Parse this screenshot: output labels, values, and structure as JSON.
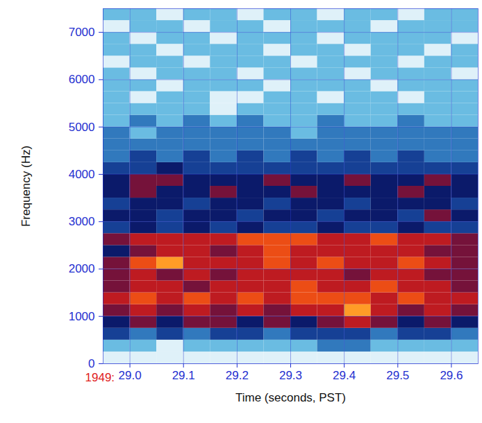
{
  "chart_data": {
    "type": "heatmap",
    "x_label": "Time (seconds, PST)",
    "y_label": "Frequency (Hz)",
    "annotations": [
      {
        "text": "1949:",
        "color": "#e0201c"
      }
    ],
    "xlim": [
      28.95,
      29.65
    ],
    "ylim": [
      0,
      7500
    ],
    "xticks": [
      {
        "value": 29,
        "label": "29.0"
      },
      29.1,
      29.2,
      29.3,
      29.4,
      29.5,
      29.6
    ],
    "yticks": [
      0,
      1000,
      2000,
      3000,
      4000,
      5000,
      6000,
      7000
    ],
    "grid": true,
    "x_edges": [
      28.95,
      29.0,
      29.05,
      29.1,
      29.15,
      29.2,
      29.25,
      29.3,
      29.35,
      29.4,
      29.45,
      29.5,
      29.55,
      29.6,
      29.65
    ],
    "y_edges": [
      0,
      250,
      500,
      750,
      1000,
      1250,
      1500,
      1750,
      2000,
      2250,
      2500,
      2750,
      3000,
      3250,
      3500,
      3750,
      4000,
      4250,
      4500,
      4750,
      5000,
      5250,
      5500,
      5750,
      6000,
      6250,
      6500,
      6750,
      7000,
      7250,
      7500
    ],
    "zlim": [
      0,
      10
    ],
    "cells": [
      [
        1,
        1,
        1,
        1,
        1,
        1,
        1,
        1,
        1,
        1,
        1,
        1,
        1,
        1
      ],
      [
        2,
        2,
        1,
        2,
        2,
        2,
        2,
        2,
        3,
        3,
        2,
        2,
        2,
        2
      ],
      [
        4,
        3,
        4,
        3,
        4,
        4,
        3,
        4,
        4,
        4,
        3,
        4,
        4,
        3
      ],
      [
        5,
        6,
        5,
        6,
        6,
        5,
        6,
        5,
        6,
        7,
        6,
        5,
        6,
        5
      ],
      [
        6,
        7,
        6,
        7,
        6,
        7,
        6,
        7,
        7,
        9,
        7,
        6,
        7,
        6
      ],
      [
        7,
        8,
        7,
        8,
        7,
        8,
        7,
        8,
        8,
        8,
        7,
        8,
        7,
        7
      ],
      [
        6,
        7,
        7,
        6,
        7,
        7,
        7,
        8,
        7,
        7,
        8,
        7,
        7,
        6
      ],
      [
        6,
        7,
        6,
        7,
        6,
        7,
        7,
        7,
        7,
        6,
        7,
        7,
        6,
        6
      ],
      [
        6,
        8,
        9,
        7,
        7,
        7,
        8,
        7,
        8,
        7,
        7,
        8,
        7,
        6
      ],
      [
        5,
        6,
        7,
        7,
        6,
        7,
        8,
        7,
        7,
        7,
        7,
        7,
        6,
        6
      ],
      [
        6,
        7,
        7,
        7,
        7,
        8,
        8,
        8,
        7,
        7,
        8,
        7,
        7,
        6
      ],
      [
        4,
        5,
        4,
        5,
        4,
        5,
        4,
        4,
        5,
        4,
        4,
        5,
        4,
        4
      ],
      [
        5,
        5,
        4,
        5,
        5,
        4,
        5,
        5,
        4,
        5,
        5,
        4,
        6,
        5
      ],
      [
        4,
        5,
        5,
        4,
        5,
        5,
        4,
        5,
        5,
        4,
        5,
        5,
        5,
        4
      ],
      [
        5,
        6,
        5,
        5,
        6,
        5,
        5,
        6,
        5,
        5,
        5,
        6,
        5,
        5
      ],
      [
        5,
        6,
        6,
        5,
        5,
        5,
        6,
        5,
        5,
        6,
        5,
        5,
        6,
        5
      ],
      [
        4,
        4,
        5,
        4,
        4,
        4,
        4,
        4,
        4,
        4,
        4,
        4,
        4,
        4
      ],
      [
        3,
        4,
        3,
        4,
        3,
        4,
        3,
        4,
        3,
        4,
        3,
        4,
        3,
        3
      ],
      [
        3,
        3,
        3,
        3,
        3,
        3,
        3,
        3,
        3,
        3,
        3,
        3,
        3,
        3
      ],
      [
        3,
        2,
        3,
        3,
        3,
        3,
        3,
        2,
        3,
        3,
        3,
        3,
        3,
        3
      ],
      [
        2,
        3,
        2,
        3,
        2,
        3,
        2,
        2,
        3,
        2,
        2,
        3,
        2,
        2
      ],
      [
        2,
        2,
        2,
        2,
        1,
        2,
        2,
        2,
        2,
        2,
        2,
        2,
        2,
        2
      ],
      [
        2,
        1,
        2,
        2,
        1,
        1,
        2,
        2,
        1,
        2,
        2,
        1,
        2,
        2
      ],
      [
        2,
        2,
        1,
        2,
        2,
        2,
        1,
        2,
        2,
        2,
        1,
        2,
        2,
        2
      ],
      [
        2,
        1,
        2,
        2,
        2,
        1,
        2,
        2,
        2,
        1,
        2,
        2,
        2,
        1
      ],
      [
        1,
        2,
        2,
        1,
        2,
        2,
        2,
        1,
        2,
        2,
        2,
        1,
        2,
        2
      ],
      [
        2,
        2,
        1,
        2,
        2,
        2,
        1,
        2,
        2,
        1,
        2,
        2,
        1,
        2
      ],
      [
        2,
        1,
        2,
        2,
        1,
        2,
        2,
        2,
        1,
        2,
        2,
        2,
        2,
        1
      ],
      [
        1,
        2,
        2,
        1,
        2,
        2,
        1,
        2,
        2,
        2,
        1,
        2,
        2,
        2
      ],
      [
        2,
        2,
        1,
        2,
        2,
        1,
        2,
        2,
        1,
        2,
        2,
        1,
        2,
        2
      ]
    ]
  }
}
